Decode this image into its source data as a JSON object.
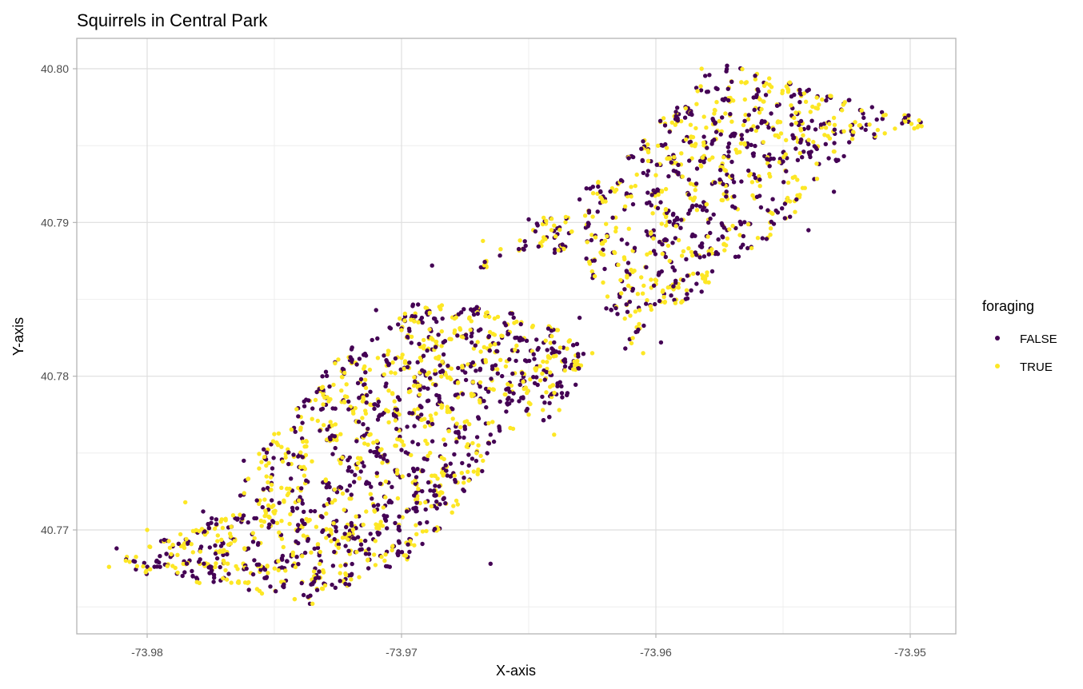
{
  "chart_data": {
    "type": "scatter",
    "title": "Squirrels in Central Park",
    "xlabel": "X-axis",
    "ylabel": "Y-axis",
    "xlim": [
      -73.9828,
      -73.9493
    ],
    "ylim": [
      40.7638,
      40.8027
    ],
    "x_ticks": [
      -73.98,
      -73.97,
      -73.96,
      -73.95
    ],
    "x_tick_labels": [
      "-73.98",
      "-73.97",
      "-73.96",
      "-73.95"
    ],
    "y_ticks": [
      40.77,
      40.78,
      40.79,
      40.8
    ],
    "y_tick_labels": [
      "40.77",
      "40.78",
      "40.79",
      "40.80"
    ],
    "grid": true,
    "theme": "light",
    "legend": {
      "title": "foraging",
      "position": "right",
      "entries": [
        {
          "label": "FALSE",
          "color": "#440154"
        },
        {
          "label": "TRUE",
          "color": "#FDE725"
        }
      ]
    },
    "series": [
      {
        "name": "FALSE",
        "color": "#440154",
        "approx_count": 1500,
        "sample_points": [
          [
            -73.9812,
            40.7688
          ],
          [
            -73.9795,
            40.7683
          ],
          [
            -73.9778,
            40.7712
          ],
          [
            -73.9762,
            40.7745
          ],
          [
            -73.9748,
            40.7675
          ],
          [
            -73.9735,
            40.7779
          ],
          [
            -73.9722,
            40.7668
          ],
          [
            -73.9712,
            40.7728
          ],
          [
            -73.97,
            40.7752
          ],
          [
            -73.969,
            40.7705
          ],
          [
            -73.9678,
            40.7788
          ],
          [
            -73.9665,
            40.7762
          ],
          [
            -73.9655,
            40.781
          ],
          [
            -73.964,
            40.7822
          ],
          [
            -73.963,
            40.7838
          ],
          [
            -73.9692,
            40.7838
          ],
          [
            -73.971,
            40.7843
          ],
          [
            -73.9688,
            40.7872
          ],
          [
            -73.965,
            40.7902
          ],
          [
            -73.963,
            40.7915
          ],
          [
            -73.961,
            40.7918
          ],
          [
            -73.9595,
            40.793
          ],
          [
            -73.958,
            40.7985
          ],
          [
            -73.9572,
            40.8002
          ],
          [
            -73.956,
            40.7962
          ],
          [
            -73.9545,
            40.7948
          ],
          [
            -73.953,
            40.792
          ],
          [
            -73.9515,
            40.7975
          ],
          [
            -73.9502,
            40.7968
          ],
          [
            -73.954,
            40.7895
          ],
          [
            -73.9582,
            40.7855
          ],
          [
            -73.9598,
            40.7822
          ],
          [
            -73.9612,
            40.7818
          ],
          [
            -73.9665,
            40.7678
          ],
          [
            -73.9736,
            40.7652
          ],
          [
            -73.976,
            40.7661
          ]
        ]
      },
      {
        "name": "TRUE",
        "color": "#FDE725",
        "approx_count": 1400,
        "sample_points": [
          [
            -73.9815,
            40.7676
          ],
          [
            -73.98,
            40.77
          ],
          [
            -73.9785,
            40.7718
          ],
          [
            -73.977,
            40.768
          ],
          [
            -73.9756,
            40.774
          ],
          [
            -73.9742,
            40.7655
          ],
          [
            -73.9728,
            40.7785
          ],
          [
            -73.9715,
            40.776
          ],
          [
            -73.9705,
            40.777
          ],
          [
            -73.9695,
            40.769
          ],
          [
            -73.9682,
            40.778
          ],
          [
            -73.9668,
            40.7745
          ],
          [
            -73.965,
            40.7775
          ],
          [
            -73.9638,
            40.7778
          ],
          [
            -73.9625,
            40.7815
          ],
          [
            -73.97,
            40.783
          ],
          [
            -73.9668,
            40.7888
          ],
          [
            -73.964,
            40.7898
          ],
          [
            -73.962,
            40.7888
          ],
          [
            -73.96,
            40.791
          ],
          [
            -73.959,
            40.7945
          ],
          [
            -73.9582,
            40.8
          ],
          [
            -73.9565,
            40.798
          ],
          [
            -73.9548,
            40.7985
          ],
          [
            -73.953,
            40.7968
          ],
          [
            -73.951,
            40.7958
          ],
          [
            -73.9555,
            40.7892
          ],
          [
            -73.959,
            40.7848
          ],
          [
            -73.9605,
            40.7815
          ],
          [
            -73.9735,
            40.7652
          ],
          [
            -73.9742,
            40.7655
          ],
          [
            -73.964,
            40.7762
          ]
        ]
      }
    ],
    "regions": {
      "southwest_cluster_polygon": [
        [
          -73.9816,
          40.768
        ],
        [
          -73.977,
          40.7712
        ],
        [
          -73.9745,
          40.778
        ],
        [
          -73.971,
          40.7832
        ],
        [
          -73.9695,
          40.7848
        ],
        [
          -73.9665,
          40.7843
        ],
        [
          -73.964,
          40.7835
        ],
        [
          -73.9625,
          40.7815
        ],
        [
          -73.9638,
          40.7775
        ],
        [
          -73.966,
          40.776
        ],
        [
          -73.9685,
          40.77
        ],
        [
          -73.97,
          40.768
        ],
        [
          -73.9725,
          40.766
        ],
        [
          -73.974,
          40.765
        ],
        [
          -73.976,
          40.766
        ],
        [
          -73.98,
          40.7672
        ]
      ],
      "northeast_cluster_polygon": [
        [
          -73.969,
          40.7852
        ],
        [
          -73.965,
          40.7895
        ],
        [
          -73.9615,
          40.7935
        ],
        [
          -73.959,
          40.7985
        ],
        [
          -73.9572,
          40.8003
        ],
        [
          -73.9545,
          40.799
        ],
        [
          -73.952,
          40.7978
        ],
        [
          -73.95,
          40.7972
        ],
        [
          -73.9495,
          40.7962
        ],
        [
          -73.9525,
          40.7945
        ],
        [
          -73.9545,
          40.7905
        ],
        [
          -73.956,
          40.7885
        ],
        [
          -73.9588,
          40.785
        ],
        [
          -73.9612,
          40.7815
        ],
        [
          -73.963,
          40.788
        ],
        [
          -73.966,
          40.7878
        ]
      ]
    }
  }
}
